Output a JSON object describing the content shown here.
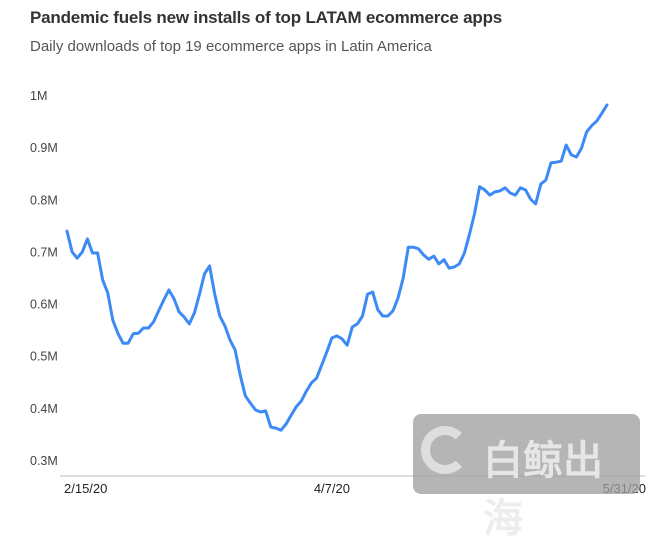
{
  "chart_data": {
    "type": "line",
    "title": "Pandemic fuels new installs of top LATAM ecommerce apps",
    "subtitle": "Daily downloads of top 19 ecommerce apps in Latin America",
    "xlabel": "",
    "ylabel": "",
    "y_unit": "M",
    "ylim": [
      0.3,
      1.0
    ],
    "yticks": [
      0.3,
      0.4,
      0.5,
      0.6,
      0.7,
      0.8,
      0.9,
      1.0
    ],
    "ytick_labels": [
      "0.3M",
      "0.4M",
      "0.5M",
      "0.6M",
      "0.7M",
      "0.8M",
      "0.9M",
      "1M"
    ],
    "xtick_labels": [
      "2/15/20",
      "4/7/20",
      "5/31/20"
    ],
    "grid": false,
    "line_color": "#3d8af7",
    "x": [
      "2/15/20",
      "2/16/20",
      "2/17/20",
      "2/18/20",
      "2/19/20",
      "2/20/20",
      "2/21/20",
      "2/22/20",
      "2/23/20",
      "2/24/20",
      "2/25/20",
      "2/26/20",
      "2/27/20",
      "2/28/20",
      "2/29/20",
      "3/1/20",
      "3/2/20",
      "3/3/20",
      "3/4/20",
      "3/5/20",
      "3/6/20",
      "3/7/20",
      "3/8/20",
      "3/9/20",
      "3/10/20",
      "3/11/20",
      "3/12/20",
      "3/13/20",
      "3/14/20",
      "3/15/20",
      "3/16/20",
      "3/17/20",
      "3/18/20",
      "3/19/20",
      "3/20/20",
      "3/21/20",
      "3/22/20",
      "3/23/20",
      "3/24/20",
      "3/25/20",
      "3/26/20",
      "3/27/20",
      "3/28/20",
      "3/29/20",
      "3/30/20",
      "3/31/20",
      "4/1/20",
      "4/2/20",
      "4/3/20",
      "4/4/20",
      "4/5/20",
      "4/6/20",
      "4/7/20",
      "4/8/20",
      "4/9/20",
      "4/10/20",
      "4/11/20",
      "4/12/20",
      "4/13/20",
      "4/14/20",
      "4/15/20",
      "4/16/20",
      "4/17/20",
      "4/18/20",
      "4/19/20",
      "4/20/20",
      "4/21/20",
      "4/22/20",
      "4/23/20",
      "4/24/20",
      "4/25/20",
      "4/26/20",
      "4/27/20",
      "4/28/20",
      "4/29/20",
      "4/30/20",
      "5/1/20",
      "5/2/20",
      "5/3/20",
      "5/4/20",
      "5/5/20",
      "5/6/20",
      "5/7/20",
      "5/8/20",
      "5/9/20",
      "5/10/20",
      "5/11/20",
      "5/12/20",
      "5/13/20",
      "5/14/20",
      "5/15/20",
      "5/16/20",
      "5/17/20",
      "5/18/20",
      "5/19/20",
      "5/20/20",
      "5/21/20",
      "5/22/20",
      "5/23/20",
      "5/24/20",
      "5/25/20",
      "5/26/20",
      "5/27/20",
      "5/28/20",
      "5/29/20",
      "5/30/20",
      "5/31/20"
    ],
    "values": [
      0.741,
      0.701,
      0.689,
      0.701,
      0.726,
      0.699,
      0.699,
      0.647,
      0.622,
      0.57,
      0.545,
      0.526,
      0.526,
      0.544,
      0.545,
      0.555,
      0.555,
      0.567,
      0.588,
      0.609,
      0.628,
      0.611,
      0.586,
      0.576,
      0.563,
      0.584,
      0.62,
      0.659,
      0.674,
      0.62,
      0.578,
      0.559,
      0.532,
      0.513,
      0.465,
      0.425,
      0.411,
      0.398,
      0.394,
      0.396,
      0.365,
      0.363,
      0.359,
      0.371,
      0.388,
      0.404,
      0.415,
      0.434,
      0.45,
      0.459,
      0.484,
      0.509,
      0.536,
      0.54,
      0.534,
      0.522,
      0.557,
      0.563,
      0.578,
      0.62,
      0.624,
      0.59,
      0.578,
      0.578,
      0.588,
      0.613,
      0.651,
      0.71,
      0.71,
      0.707,
      0.695,
      0.687,
      0.693,
      0.678,
      0.686,
      0.67,
      0.672,
      0.678,
      0.699,
      0.735,
      0.774,
      0.826,
      0.82,
      0.81,
      0.816,
      0.818,
      0.824,
      0.814,
      0.81,
      0.824,
      0.82,
      0.802,
      0.793,
      0.831,
      0.839,
      0.872,
      0.873,
      0.875,
      0.906,
      0.887,
      0.883,
      0.9,
      0.931,
      0.943,
      0.952,
      0.967,
      0.983
    ]
  },
  "watermark": {
    "text": "白鲸出海"
  }
}
